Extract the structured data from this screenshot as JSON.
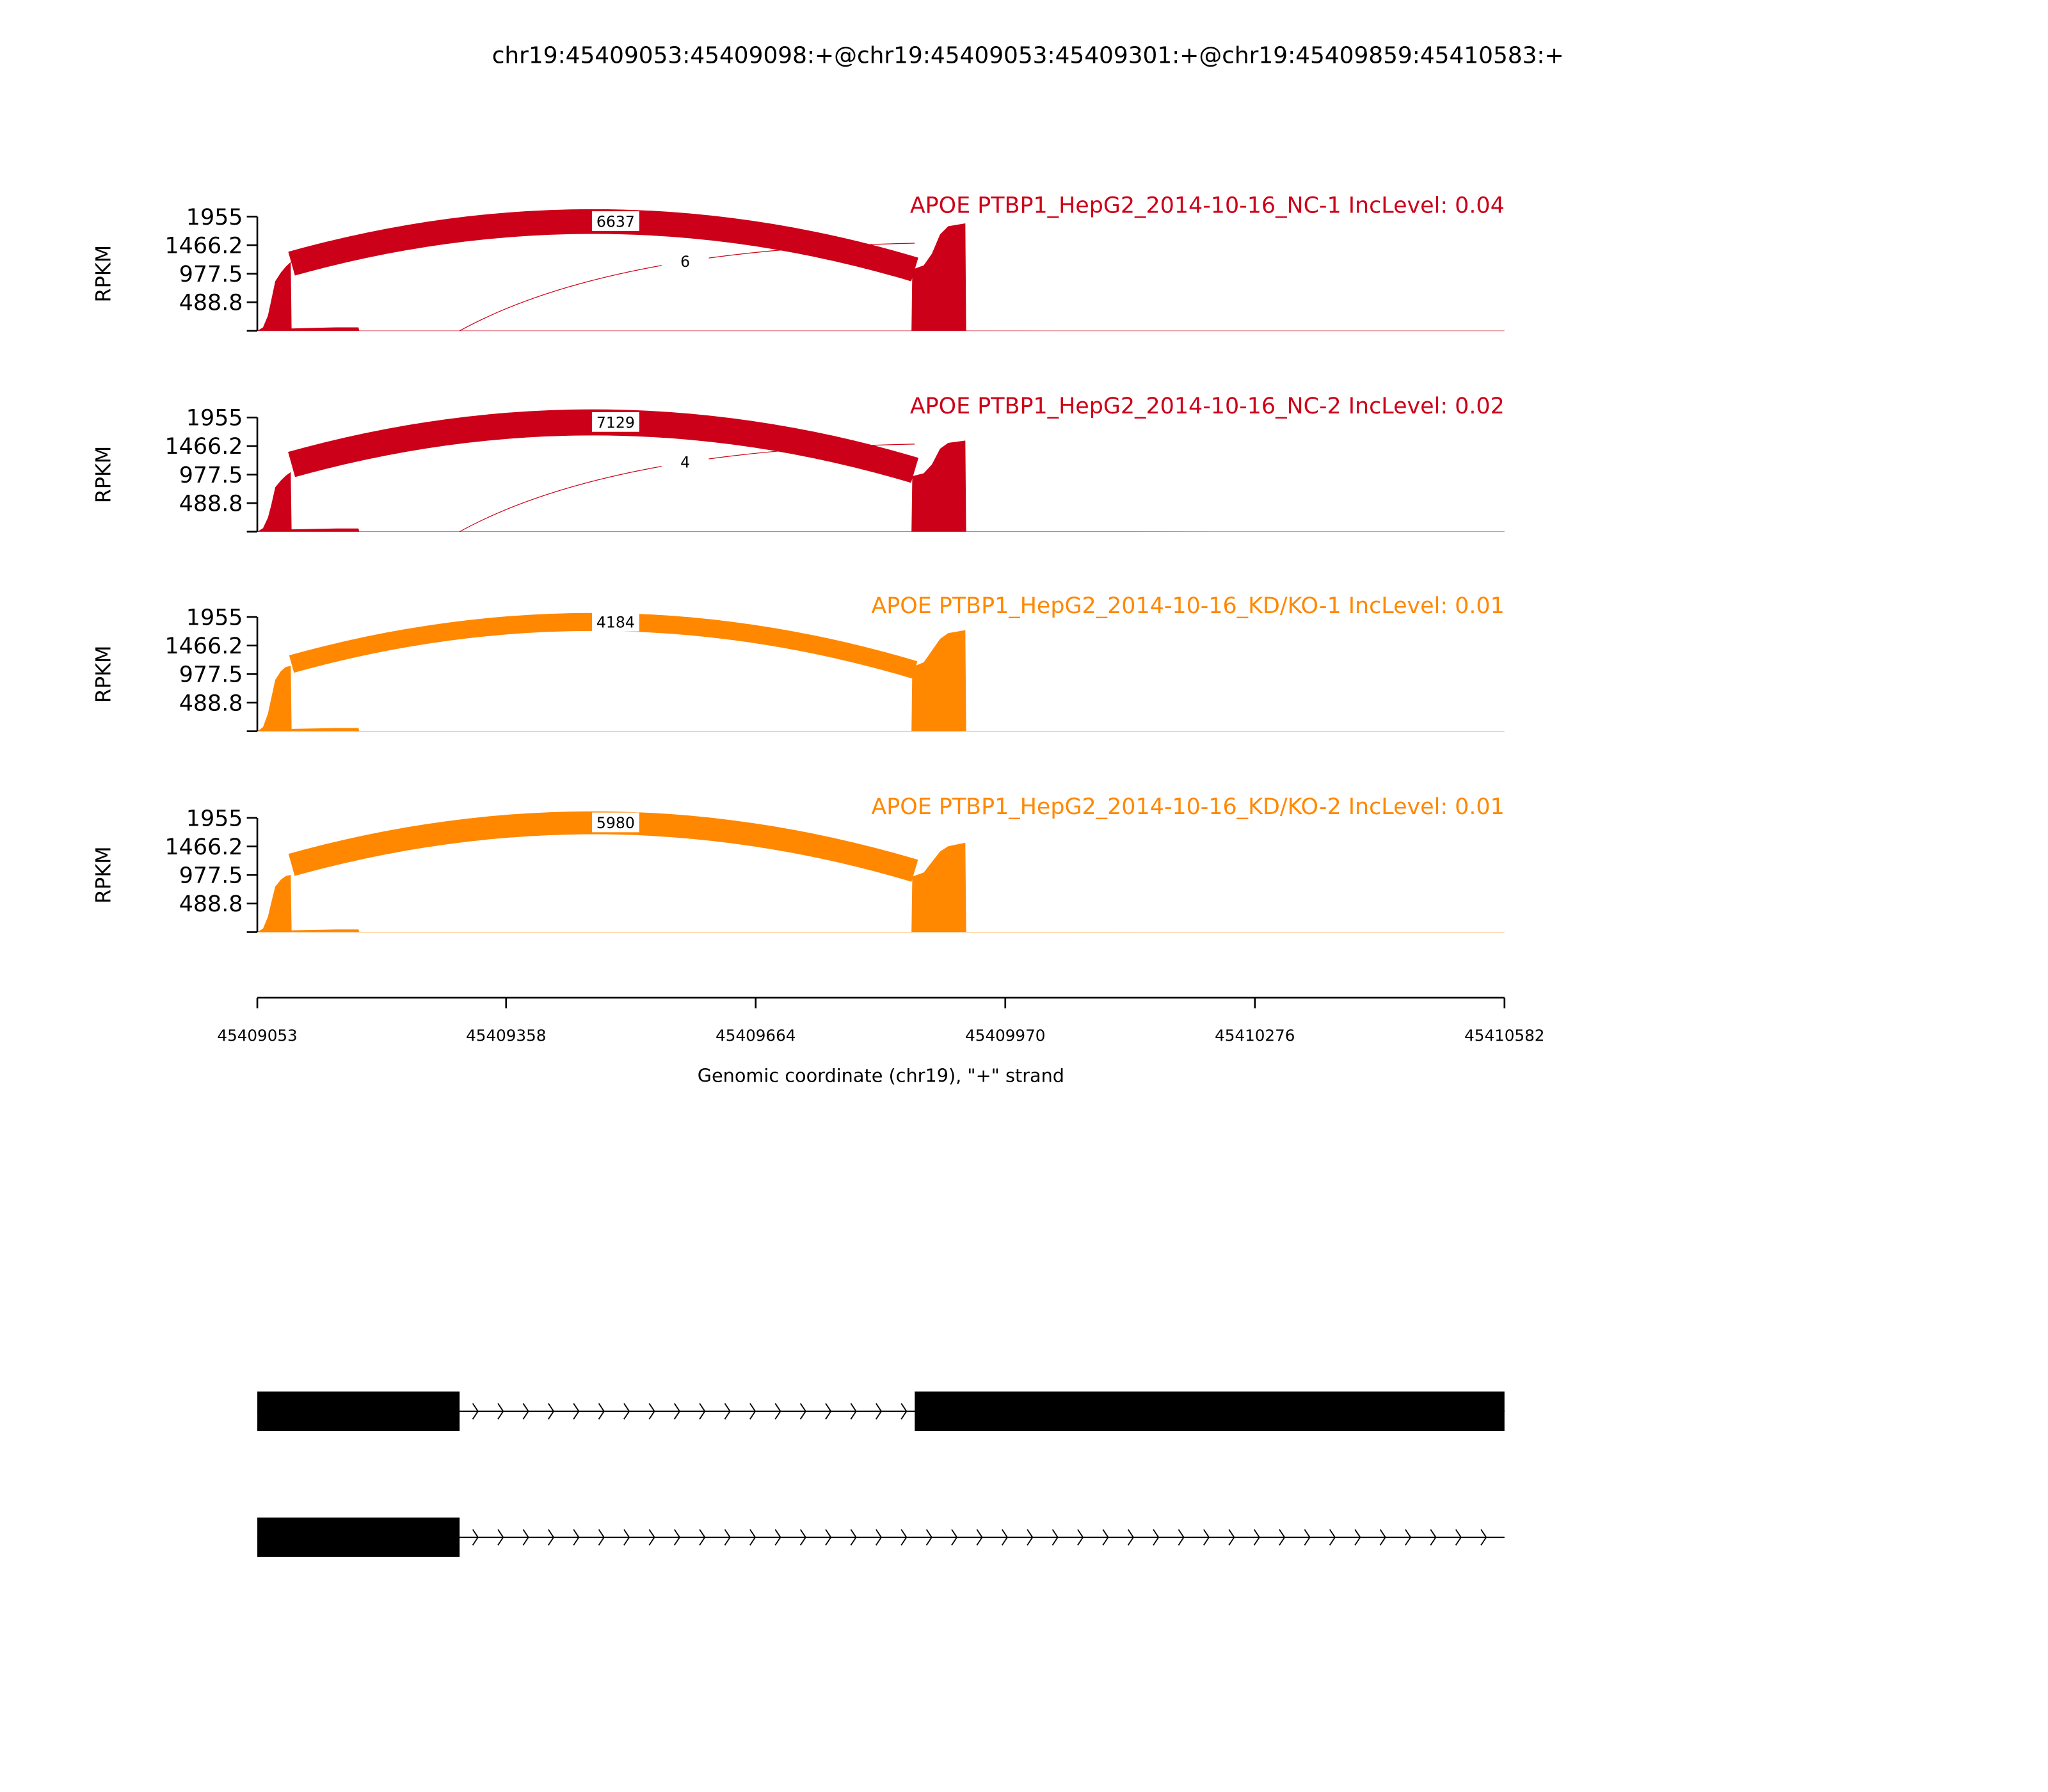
{
  "chart_data": {
    "type": "area",
    "title": "chr19:45409053:45409098:+@chr19:45409053:45409301:+@chr19:45409859:45410583:+",
    "xlabel": "Genomic coordinate (chr19), \"+\" strand",
    "ylabel": "RPKM",
    "xlim": [
      45409053,
      45410582
    ],
    "xticks": [
      "45409053",
      "45409358",
      "45409664",
      "45409970",
      "45410276",
      "45410582"
    ],
    "ylim": [
      0,
      1955
    ],
    "yticks": [
      "1955",
      "1466.2",
      "977.5",
      "488.8"
    ],
    "grid": false,
    "panels": [
      {
        "label": "APOE PTBP1_HepG2_2014-10-16_NC-1 IncLevel: 0.04",
        "color": "#CC0018",
        "coverage": [
          [
            45409053,
            0
          ],
          [
            45409060,
            60
          ],
          [
            45409066,
            260
          ],
          [
            45409070,
            520
          ],
          [
            45409075,
            850
          ],
          [
            45409082,
            1000
          ],
          [
            45409088,
            1100
          ],
          [
            45409094,
            1180
          ],
          [
            45409095,
            40
          ],
          [
            45409150,
            60
          ],
          [
            45409177,
            60
          ],
          [
            45409178,
            5
          ],
          [
            45409855,
            5
          ],
          [
            45409856,
            1050
          ],
          [
            45409870,
            1120
          ],
          [
            45409880,
            1320
          ],
          [
            45409890,
            1650
          ],
          [
            45409900,
            1790
          ],
          [
            45409921,
            1840
          ],
          [
            45409922,
            4
          ],
          [
            45410582,
            3
          ]
        ],
        "junctions": [
          {
            "start": 45409095,
            "end": 45409859,
            "count": "6637"
          },
          {
            "start": 45409301,
            "end": 45409859,
            "count": "6"
          }
        ]
      },
      {
        "label": "APOE PTBP1_HepG2_2014-10-16_NC-2 IncLevel: 0.02",
        "color": "#CC0018",
        "coverage": [
          [
            45409053,
            0
          ],
          [
            45409060,
            60
          ],
          [
            45409066,
            240
          ],
          [
            45409070,
            450
          ],
          [
            45409075,
            760
          ],
          [
            45409082,
            880
          ],
          [
            45409088,
            960
          ],
          [
            45409094,
            1020
          ],
          [
            45409095,
            40
          ],
          [
            45409150,
            55
          ],
          [
            45409177,
            55
          ],
          [
            45409178,
            5
          ],
          [
            45409855,
            5
          ],
          [
            45409856,
            950
          ],
          [
            45409870,
            1000
          ],
          [
            45409880,
            1150
          ],
          [
            45409890,
            1420
          ],
          [
            45409900,
            1520
          ],
          [
            45409921,
            1560
          ],
          [
            45409922,
            4
          ],
          [
            45410582,
            3
          ]
        ],
        "junctions": [
          {
            "start": 45409095,
            "end": 45409859,
            "count": "7129"
          },
          {
            "start": 45409301,
            "end": 45409859,
            "count": "4"
          }
        ]
      },
      {
        "label": "APOE PTBP1_HepG2_2014-10-16_KD/KO-1 IncLevel: 0.01",
        "color": "#FF8800",
        "coverage": [
          [
            45409053,
            0
          ],
          [
            45409060,
            70
          ],
          [
            45409066,
            300
          ],
          [
            45409070,
            560
          ],
          [
            45409075,
            880
          ],
          [
            45409082,
            1030
          ],
          [
            45409088,
            1100
          ],
          [
            45409094,
            1120
          ],
          [
            45409095,
            40
          ],
          [
            45409150,
            55
          ],
          [
            45409177,
            55
          ],
          [
            45409178,
            5
          ],
          [
            45409855,
            5
          ],
          [
            45409856,
            1100
          ],
          [
            45409870,
            1180
          ],
          [
            45409880,
            1380
          ],
          [
            45409890,
            1580
          ],
          [
            45409900,
            1680
          ],
          [
            45409921,
            1730
          ],
          [
            45409922,
            4
          ],
          [
            45410582,
            3
          ]
        ],
        "junctions": [
          {
            "start": 45409095,
            "end": 45409859,
            "count": "4184"
          }
        ]
      },
      {
        "label": "APOE PTBP1_HepG2_2014-10-16_KD/KO-2 IncLevel: 0.01",
        "color": "#FF8800",
        "coverage": [
          [
            45409053,
            0
          ],
          [
            45409060,
            60
          ],
          [
            45409066,
            260
          ],
          [
            45409070,
            500
          ],
          [
            45409075,
            780
          ],
          [
            45409082,
            900
          ],
          [
            45409088,
            960
          ],
          [
            45409094,
            980
          ],
          [
            45409095,
            30
          ],
          [
            45409150,
            45
          ],
          [
            45409177,
            45
          ],
          [
            45409178,
            5
          ],
          [
            45409855,
            5
          ],
          [
            45409856,
            950
          ],
          [
            45409870,
            1020
          ],
          [
            45409880,
            1200
          ],
          [
            45409890,
            1380
          ],
          [
            45409900,
            1470
          ],
          [
            45409921,
            1530
          ],
          [
            45409922,
            4
          ],
          [
            45410582,
            3
          ]
        ],
        "junctions": [
          {
            "start": 45409095,
            "end": 45409859,
            "count": "5980"
          }
        ]
      }
    ],
    "gene_models": [
      {
        "exons": [
          [
            45409053,
            45409301
          ],
          [
            45409859,
            45410583
          ]
        ],
        "strand": "+"
      },
      {
        "exons": [
          [
            45409053,
            45409301
          ]
        ],
        "strand": "+"
      }
    ]
  }
}
